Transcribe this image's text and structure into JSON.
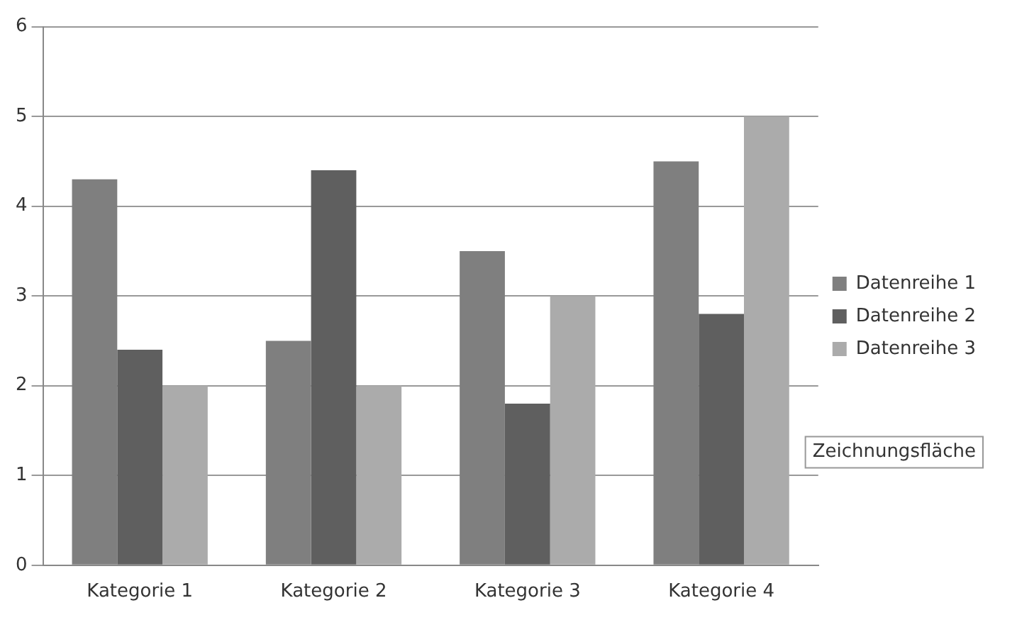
{
  "chart_data": {
    "type": "bar",
    "categories": [
      "Kategorie 1",
      "Kategorie 2",
      "Kategorie 3",
      "Kategorie 4"
    ],
    "series": [
      {
        "name": "Datenreihe 1",
        "color": "#7f7f7f",
        "values": [
          4.3,
          2.5,
          3.5,
          4.5
        ]
      },
      {
        "name": "Datenreihe 2",
        "color": "#5f5f5f",
        "values": [
          2.4,
          4.4,
          1.8,
          2.8
        ]
      },
      {
        "name": "Datenreihe 3",
        "color": "#ababab",
        "values": [
          2,
          2,
          3,
          5
        ]
      }
    ],
    "ylim": [
      0,
      6
    ],
    "yticks": [
      0,
      1,
      2,
      3,
      4,
      5,
      6
    ],
    "grid": "y",
    "legend": "right",
    "annotations": [
      "Zeichnungsfläche"
    ]
  }
}
